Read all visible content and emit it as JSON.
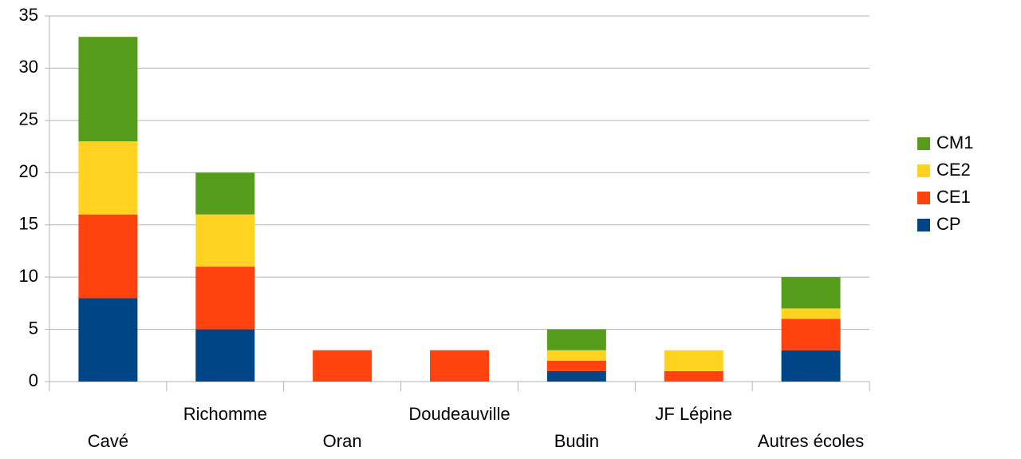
{
  "chart_data": {
    "type": "stacked_bar",
    "categories": [
      "Cavé",
      "Richomme",
      "Oran",
      "Doudeauville",
      "Budin",
      "JF Lépine",
      "Autres écoles"
    ],
    "series": [
      {
        "name": "CP",
        "color": "#004586",
        "values": [
          8,
          5,
          0,
          0,
          1,
          0,
          3
        ]
      },
      {
        "name": "CE1",
        "color": "#ff420e",
        "values": [
          8,
          6,
          3,
          3,
          1,
          1,
          3
        ]
      },
      {
        "name": "CE2",
        "color": "#ffd320",
        "values": [
          7,
          5,
          0,
          0,
          1,
          2,
          1
        ]
      },
      {
        "name": "CM1",
        "color": "#579d1c",
        "values": [
          10,
          4,
          0,
          0,
          2,
          0,
          3
        ]
      }
    ],
    "ylim": [
      0,
      35
    ],
    "yticks": [
      0,
      5,
      10,
      15,
      20,
      25,
      30,
      35
    ],
    "grid": true,
    "legend": "right"
  }
}
